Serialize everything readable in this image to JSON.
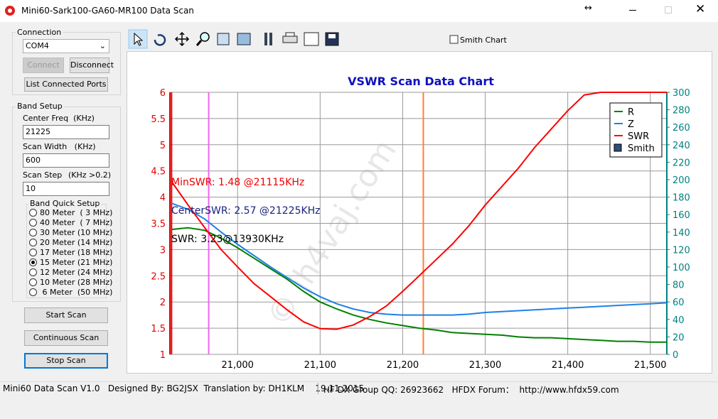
{
  "window": {
    "title": "Mini60-Sark100-GA60-MR100 Data Scan"
  },
  "connection": {
    "label": "Connection",
    "port": "COM4",
    "connect": "Connect",
    "disconnect": "Disconnect",
    "list_ports": "List Connected Ports"
  },
  "band_setup": {
    "label": "Band Setup",
    "fields": [
      {
        "label": "Center Freq  (KHz)",
        "value": "21225"
      },
      {
        "label": "Scan Width   (KHz)",
        "value": "600"
      },
      {
        "label": "Scan Step",
        "value": "10"
      }
    ],
    "step_hint": "(KHz >0.2)",
    "quick": {
      "label": "Band Quick Setup",
      "selected": 5,
      "options": [
        "80 Meter  ( 3 MHz)",
        "40 Meter  ( 7 MHz)",
        "30 Meter (10 MHz)",
        "20 Meter (14 MHz)",
        "17 Meter (18 MHz)",
        "15 Meter (21 MHz)",
        "12 Meter (24 MHz)",
        "10 Meter (28 MHz)",
        " 6 Meter  (50 MHz)"
      ]
    }
  },
  "buttons": {
    "start": "Start Scan",
    "continuous": "Continuous Scan",
    "stop": "Stop Scan"
  },
  "toolbar": {
    "smith_checkbox": "Smith Chart"
  },
  "chart_data": {
    "type": "line",
    "title": "VSWR Scan Data Chart",
    "x": [
      20920,
      20940,
      20960,
      20980,
      21000,
      21020,
      21040,
      21060,
      21080,
      21100,
      21120,
      21140,
      21160,
      21180,
      21200,
      21220,
      21240,
      21260,
      21280,
      21300,
      21320,
      21340,
      21360,
      21380,
      21400,
      21420,
      21440,
      21460,
      21480,
      21500,
      21520
    ],
    "series": [
      {
        "name": "R",
        "color": "#008000",
        "axis": "y2",
        "values": [
          143,
          145,
          142,
          133,
          122,
          110,
          98,
          86,
          72,
          60,
          52,
          45,
          40,
          36,
          33,
          30,
          28,
          25,
          24,
          23,
          22,
          20,
          19,
          19,
          18,
          17,
          16,
          15,
          15,
          14,
          14
        ]
      },
      {
        "name": "Z",
        "color": "#1e80e6",
        "axis": "y2",
        "values": [
          173,
          166,
          155,
          140,
          126,
          113,
          100,
          88,
          76,
          66,
          58,
          52,
          48,
          46,
          45,
          45,
          45,
          45,
          46,
          48,
          49,
          50,
          51,
          52,
          53,
          54,
          55,
          56,
          57,
          58,
          59
        ]
      },
      {
        "name": "SWR",
        "color": "#ff0000",
        "values": [
          4.3,
          3.85,
          3.42,
          3.0,
          2.67,
          2.35,
          2.1,
          1.85,
          1.62,
          1.49,
          1.48,
          1.56,
          1.72,
          1.92,
          2.2,
          2.5,
          2.8,
          3.1,
          3.45,
          3.85,
          4.2,
          4.55,
          4.95,
          5.3,
          5.65,
          5.95,
          6,
          6,
          6,
          6,
          6
        ]
      }
    ],
    "legend_extra_entry": {
      "name": "Smith",
      "color": "#2c4f80"
    },
    "xlim": [
      20918,
      21520
    ],
    "xticks": [
      {
        "value": 21000,
        "label": "21,000"
      },
      {
        "value": 21100,
        "label": "21,100"
      },
      {
        "value": 21200,
        "label": "21,200"
      },
      {
        "value": 21300,
        "label": "21,300"
      },
      {
        "value": 21400,
        "label": "21,400"
      },
      {
        "value": 21500,
        "label": "21,500"
      }
    ],
    "ylim": [
      1,
      6
    ],
    "yticks": [
      1,
      1.5,
      2,
      2.5,
      3,
      3.5,
      4,
      4.5,
      5,
      5.5,
      6
    ],
    "ycolor": "#e00000",
    "y2lim": [
      0,
      300
    ],
    "y2ticks": [
      0,
      20,
      40,
      60,
      80,
      100,
      120,
      140,
      160,
      180,
      200,
      220,
      240,
      260,
      280,
      300
    ],
    "y2color": "#008080",
    "grid": true,
    "legend": "upper right",
    "markers": [
      {
        "x": 20920,
        "color": "#e00000"
      },
      {
        "x": 20965,
        "color": "#ee66ee"
      },
      {
        "x": 21225,
        "color": "#ff8030"
      }
    ],
    "annotations": [
      {
        "text": "MinSWR: 1.48 @21115KHz",
        "color": "#ee0000"
      },
      {
        "text": "CenterSWR: 2.57 @21225KHz",
        "color": "#1a237e"
      },
      {
        "text": "SWR: 3.23@13930KHz",
        "color": "#000000"
      }
    ],
    "watermark": "© jh4vaj.com"
  },
  "status": {
    "left": "Mini60 Data Scan V1.0   Designed By: BG2JSX  Translation by: DH1KLM    19.11.2015",
    "right": "HF DX Group QQ: 26923662   HFDX Forum：  http://www.hfdx59.com"
  }
}
